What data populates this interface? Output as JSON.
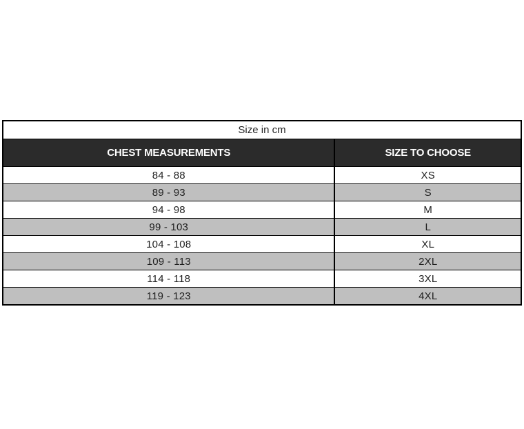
{
  "size_chart": {
    "caption": "Size in cm",
    "columns": [
      {
        "label": "CHEST MEASUREMENTS"
      },
      {
        "label": "SIZE TO CHOOSE"
      }
    ],
    "rows": [
      {
        "chest": "84 - 88",
        "size": "XS"
      },
      {
        "chest": "89 - 93",
        "size": "S"
      },
      {
        "chest": "94 - 98",
        "size": "M"
      },
      {
        "chest": "99 - 103",
        "size": "L"
      },
      {
        "chest": "104 - 108",
        "size": "XL"
      },
      {
        "chest": "109 - 113",
        "size": "2XL"
      },
      {
        "chest": "114 - 118",
        "size": "3XL"
      },
      {
        "chest": "119 - 123",
        "size": "4XL"
      }
    ],
    "colors": {
      "header_bg": "#2b2b2b",
      "header_text": "#ffffff",
      "row_bg": "#ffffff",
      "row_alt_bg": "#bfbfbf",
      "border": "#000000",
      "text": "#1f1f1f",
      "page_bg": "#ffffff"
    }
  },
  "chart_data": {
    "type": "table",
    "title": "Size in cm",
    "columns": [
      "CHEST MEASUREMENTS",
      "SIZE TO CHOOSE"
    ],
    "rows": [
      [
        "84 - 88",
        "XS"
      ],
      [
        "89 - 93",
        "S"
      ],
      [
        "94 - 98",
        "M"
      ],
      [
        "99 - 103",
        "L"
      ],
      [
        "104 - 108",
        "XL"
      ],
      [
        "109 - 113",
        "2XL"
      ],
      [
        "114 - 118",
        "3XL"
      ],
      [
        "119 - 123",
        "4XL"
      ]
    ],
    "layout": {
      "caption_row": true,
      "alternating_row_shading": "rows 2,4,6,8 gray",
      "grid": true
    }
  }
}
